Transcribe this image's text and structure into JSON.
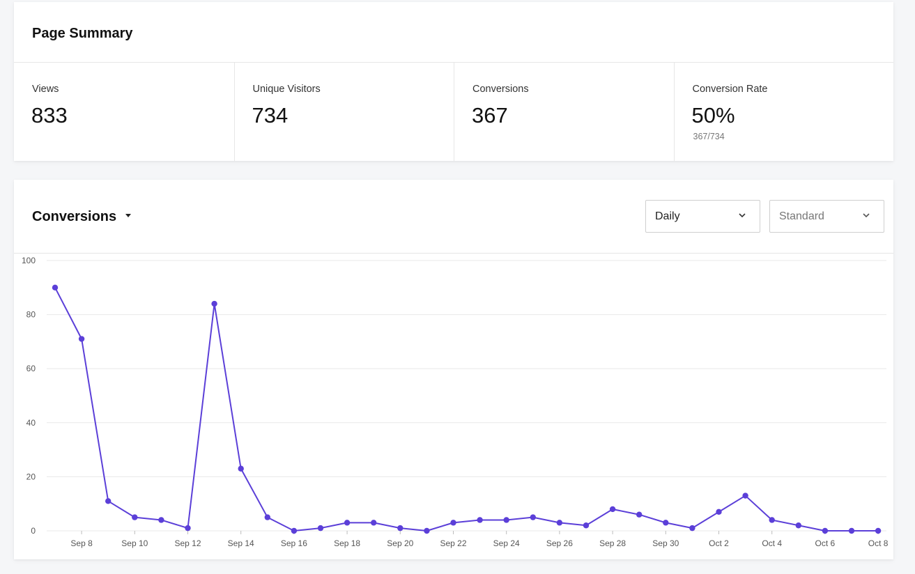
{
  "summary": {
    "title": "Page Summary",
    "stats": [
      {
        "label": "Views",
        "value": "833",
        "sub": ""
      },
      {
        "label": "Unique Visitors",
        "value": "734",
        "sub": ""
      },
      {
        "label": "Conversions",
        "value": "367",
        "sub": ""
      },
      {
        "label": "Conversion Rate",
        "value": "50%",
        "sub": "367/734"
      }
    ]
  },
  "chart_panel": {
    "title": "Conversions",
    "interval_select": {
      "value": "Daily"
    },
    "mode_select": {
      "value": "Standard"
    }
  },
  "colors": {
    "line": "#5b3fd8",
    "grid": "#e8e8e8",
    "text_muted": "#777777"
  },
  "chart_data": {
    "type": "line",
    "title": "",
    "xlabel": "",
    "ylabel": "",
    "ylim": [
      0,
      100
    ],
    "yticks": [
      0,
      20,
      40,
      60,
      80,
      100
    ],
    "x": [
      "Sep 7",
      "Sep 8",
      "Sep 9",
      "Sep 10",
      "Sep 11",
      "Sep 12",
      "Sep 13",
      "Sep 14",
      "Sep 15",
      "Sep 16",
      "Sep 17",
      "Sep 18",
      "Sep 19",
      "Sep 20",
      "Sep 21",
      "Sep 22",
      "Sep 23",
      "Sep 24",
      "Sep 25",
      "Sep 26",
      "Sep 27",
      "Sep 28",
      "Sep 29",
      "Sep 30",
      "Oct 1",
      "Oct 2",
      "Oct 3",
      "Oct 4",
      "Oct 5",
      "Oct 6",
      "Oct 7",
      "Oct 8"
    ],
    "xtick_labels": [
      "Sep 8",
      "Sep 10",
      "Sep 12",
      "Sep 14",
      "Sep 16",
      "Sep 18",
      "Sep 20",
      "Sep 22",
      "Sep 24",
      "Sep 26",
      "Sep 28",
      "Sep 30",
      "Oct 2",
      "Oct 4",
      "Oct 6",
      "Oct 8"
    ],
    "series": [
      {
        "values": [
          90,
          71,
          11,
          5,
          4,
          1,
          84,
          23,
          5,
          0,
          1,
          3,
          3,
          1,
          0,
          3,
          4,
          4,
          5,
          3,
          2,
          8,
          6,
          3,
          1,
          7,
          13,
          4,
          2,
          0,
          0,
          0
        ]
      }
    ],
    "grid": true,
    "legend": "none"
  }
}
